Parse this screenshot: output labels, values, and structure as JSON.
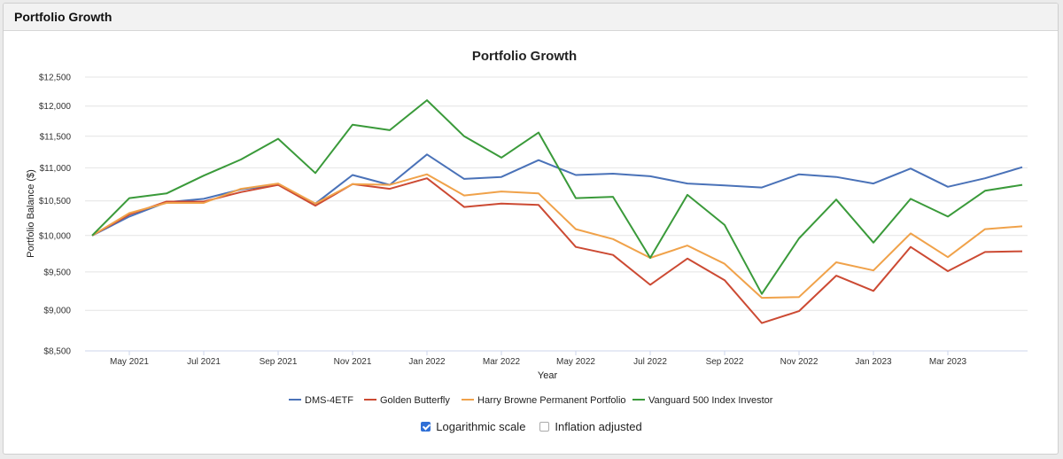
{
  "panel": {
    "title": "Portfolio Growth"
  },
  "options": {
    "log_scale": {
      "label": "Logarithmic scale",
      "checked": true
    },
    "inflation": {
      "label": "Inflation adjusted",
      "checked": false
    }
  },
  "chart_data": {
    "type": "line",
    "title": "Portfolio Growth",
    "xlabel": "Year",
    "ylabel": "Portfolio Balance ($)",
    "yscale": "log",
    "ylim": [
      8500,
      12500
    ],
    "yticks": [
      8500,
      9000,
      9500,
      10000,
      10500,
      11000,
      11500,
      12000,
      12500
    ],
    "ytick_labels": [
      "$8,500",
      "$9,000",
      "$9,500",
      "$10,000",
      "$10,500",
      "$11,000",
      "$11,500",
      "$12,000",
      "$12,500"
    ],
    "x": [
      "Apr 2021",
      "May 2021",
      "Jun 2021",
      "Jul 2021",
      "Aug 2021",
      "Sep 2021",
      "Oct 2021",
      "Nov 2021",
      "Dec 2021",
      "Jan 2022",
      "Feb 2022",
      "Mar 2022",
      "Apr 2022",
      "May 2022",
      "Jun 2022",
      "Jul 2022",
      "Aug 2022",
      "Sep 2022",
      "Oct 2022",
      "Nov 2022",
      "Dec 2022",
      "Jan 2023",
      "Feb 2023",
      "Mar 2023",
      "Apr 2023",
      "May 2023"
    ],
    "xtick_labels": [
      "May 2021",
      "Jul 2021",
      "Sep 2021",
      "Nov 2021",
      "Jan 2022",
      "Mar 2022",
      "May 2022",
      "Jul 2022",
      "Sep 2022",
      "Nov 2022",
      "Jan 2023",
      "Mar 2023"
    ],
    "xtick_positions": [
      1,
      3,
      5,
      7,
      9,
      11,
      13,
      15,
      17,
      19,
      21,
      23
    ],
    "legend_position": "bottom",
    "series": [
      {
        "name": "DMS-4ETF",
        "color": "#4a72b8",
        "values": [
          10000,
          10270,
          10480,
          10530,
          10670,
          10740,
          10460,
          10890,
          10740,
          11210,
          10830,
          10860,
          11120,
          10890,
          10910,
          10870,
          10760,
          10730,
          10700,
          10900,
          10860,
          10760,
          10990,
          10710,
          10840,
          11010
        ]
      },
      {
        "name": "Golden Butterfly",
        "color": "#cc4a33",
        "values": [
          10000,
          10300,
          10490,
          10490,
          10630,
          10740,
          10430,
          10750,
          10680,
          10840,
          10410,
          10460,
          10440,
          9840,
          9730,
          9330,
          9680,
          9390,
          8840,
          8990,
          9450,
          9250,
          9840,
          9510,
          9770,
          9780
        ]
      },
      {
        "name": "Harry Browne Permanent Portfolio",
        "color": "#f0a24a",
        "values": [
          10000,
          10320,
          10470,
          10470,
          10680,
          10760,
          10460,
          10750,
          10740,
          10900,
          10580,
          10640,
          10610,
          10090,
          9950,
          9690,
          9860,
          9610,
          9160,
          9170,
          9630,
          9520,
          10030,
          9700,
          10090,
          10130
        ]
      },
      {
        "name": "Vanguard 500 Index Investor",
        "color": "#3a9a3a",
        "values": [
          10000,
          10540,
          10610,
          10880,
          11130,
          11460,
          10920,
          11690,
          11600,
          12100,
          11500,
          11160,
          11560,
          10540,
          10560,
          9690,
          10590,
          10150,
          9210,
          9960,
          10520,
          9900,
          10530,
          10270,
          10650,
          10740
        ]
      }
    ]
  }
}
